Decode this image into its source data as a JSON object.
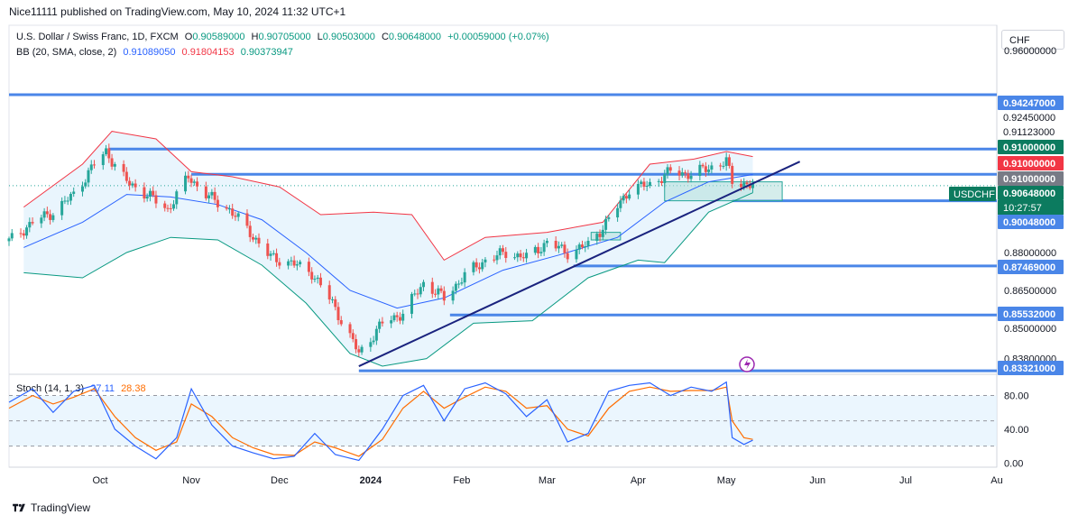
{
  "header": {
    "publisher": "Nice11111 published on TradingView.com, May 10, 2024 11:32 UTC+1"
  },
  "legend": {
    "symbol": "U.S. Dollar / Swiss Franc, 1D, FXCM",
    "open_label": "O",
    "open": "0.90589000",
    "high_label": "H",
    "high": "0.90705000",
    "low_label": "L",
    "low": "0.90503000",
    "close_label": "C",
    "close": "0.90648000",
    "change": "+0.00059000 (+0.07%)",
    "bb_label": "BB (20, SMA, close, 2)",
    "bb_basis": "0.91089050",
    "bb_upper": "0.91804153",
    "bb_lower": "0.90373947",
    "stoch_label": "Stoch (14, 1, 3)",
    "stoch_k": "27.11",
    "stoch_d": "28.38"
  },
  "toolbar": {
    "currency": "CHF"
  },
  "branding": {
    "name": "TradingView"
  },
  "colors": {
    "up": "#26a69a",
    "down": "#ef5350",
    "bb_upper": "#f23645",
    "bb_basis": "#2962ff",
    "bb_lower": "#089981",
    "bb_fill": "#e3f2fd",
    "level_line": "#4a86e8",
    "trend_line": "#1a237e",
    "stoch_k": "#2962ff",
    "stoch_d": "#ff6d00",
    "price_tag": "#0c7b5f",
    "red_tag": "#f23645"
  },
  "chart_data": {
    "type": "candlestick",
    "symbol_tag": "USDCHF",
    "countdown": "10:27:57",
    "price_axis": {
      "ylim": [
        0.8318,
        0.97
      ],
      "ticks": [
        "0.96000000",
        "0.88000000",
        "0.86500000",
        "0.85000000",
        "0.83800000"
      ],
      "tick_values": [
        0.96,
        0.88,
        0.865,
        0.85,
        0.838
      ]
    },
    "level_labels": [
      {
        "text": "0.94247000",
        "value": 0.94247,
        "style": "blue"
      },
      {
        "text": "0.92450000",
        "value": 0.9245,
        "style": "plain"
      },
      {
        "text": "0.91123000",
        "value": 0.91123,
        "style": "plain"
      },
      {
        "text": "0.91000000",
        "value": 0.91,
        "style": "green"
      },
      {
        "text": "0.91000000",
        "value": 0.91,
        "style": "red"
      },
      {
        "text": "0.91000000",
        "value": 0.91,
        "style": "gray"
      },
      {
        "text": "0.90648000",
        "value": 0.90648,
        "style": "price"
      },
      {
        "text": "0.90048000",
        "value": 0.90048,
        "style": "blue"
      },
      {
        "text": "0.87469000",
        "value": 0.87469,
        "style": "blue"
      },
      {
        "text": "0.85532000",
        "value": 0.85532,
        "style": "blue"
      },
      {
        "text": "0.83321000",
        "value": 0.83321,
        "style": "blue"
      }
    ],
    "x_axis": {
      "labels": [
        {
          "text": "Oct",
          "date": "2023-10-01"
        },
        {
          "text": "Nov",
          "date": "2023-11-01"
        },
        {
          "text": "Dec",
          "date": "2023-12-01"
        },
        {
          "text": "2024",
          "date": "2024-01-01"
        },
        {
          "text": "Feb",
          "date": "2024-02-01"
        },
        {
          "text": "Mar",
          "date": "2024-03-01"
        },
        {
          "text": "Apr",
          "date": "2024-04-01"
        },
        {
          "text": "May",
          "date": "2024-05-01"
        },
        {
          "text": "Jun",
          "date": "2024-06-01"
        },
        {
          "text": "Jul",
          "date": "2024-07-01"
        },
        {
          "text": "Au",
          "date": "2024-08-01"
        }
      ],
      "xlim": [
        "2023-08-31",
        "2024-08-01"
      ]
    },
    "series_points": [
      [
        "2023-08-31",
        0.8845
      ],
      [
        "2023-09-08",
        0.892
      ],
      [
        "2023-09-15",
        0.896
      ],
      [
        "2023-09-22",
        0.903
      ],
      [
        "2023-09-29",
        0.915
      ],
      [
        "2023-10-03",
        0.92
      ],
      [
        "2023-10-10",
        0.908
      ],
      [
        "2023-10-17",
        0.903
      ],
      [
        "2023-10-24",
        0.897
      ],
      [
        "2023-10-31",
        0.91
      ],
      [
        "2023-11-07",
        0.902
      ],
      [
        "2023-11-14",
        0.897
      ],
      [
        "2023-11-21",
        0.888
      ],
      [
        "2023-11-28",
        0.878
      ],
      [
        "2023-12-05",
        0.876
      ],
      [
        "2023-12-12",
        0.872
      ],
      [
        "2023-12-19",
        0.86
      ],
      [
        "2023-12-28",
        0.84
      ],
      [
        "2024-01-05",
        0.852
      ],
      [
        "2024-01-12",
        0.856
      ],
      [
        "2024-01-19",
        0.868
      ],
      [
        "2024-01-26",
        0.862
      ],
      [
        "2024-02-02",
        0.871
      ],
      [
        "2024-02-09",
        0.877
      ],
      [
        "2024-02-16",
        0.88
      ],
      [
        "2024-02-23",
        0.878
      ],
      [
        "2024-03-01",
        0.884
      ],
      [
        "2024-03-08",
        0.88
      ],
      [
        "2024-03-15",
        0.883
      ],
      [
        "2024-03-22",
        0.893
      ],
      [
        "2024-03-29",
        0.905
      ],
      [
        "2024-04-05",
        0.907
      ],
      [
        "2024-04-12",
        0.912
      ],
      [
        "2024-04-19",
        0.911
      ],
      [
        "2024-04-26",
        0.914
      ],
      [
        "2024-05-01",
        0.916
      ],
      [
        "2024-05-03",
        0.908
      ],
      [
        "2024-05-07",
        0.9075
      ],
      [
        "2024-05-10",
        0.90648
      ]
    ],
    "bollinger": {
      "upper": [
        [
          "2023-09-05",
          0.898
        ],
        [
          "2023-09-25",
          0.915
        ],
        [
          "2023-10-05",
          0.928
        ],
        [
          "2023-10-20",
          0.925
        ],
        [
          "2023-11-01",
          0.912
        ],
        [
          "2023-11-15",
          0.91
        ],
        [
          "2023-12-01",
          0.906
        ],
        [
          "2023-12-15",
          0.895
        ],
        [
          "2024-01-02",
          0.896
        ],
        [
          "2024-01-15",
          0.895
        ],
        [
          "2024-01-26",
          0.877
        ],
        [
          "2024-02-09",
          0.886
        ],
        [
          "2024-03-01",
          0.888
        ],
        [
          "2024-03-20",
          0.892
        ],
        [
          "2024-04-05",
          0.915
        ],
        [
          "2024-04-20",
          0.917
        ],
        [
          "2024-05-01",
          0.92
        ],
        [
          "2024-05-10",
          0.918
        ]
      ],
      "basis": [
        [
          "2023-09-05",
          0.882
        ],
        [
          "2023-09-25",
          0.892
        ],
        [
          "2023-10-10",
          0.903
        ],
        [
          "2023-10-25",
          0.902
        ],
        [
          "2023-11-10",
          0.899
        ],
        [
          "2023-11-25",
          0.893
        ],
        [
          "2023-12-10",
          0.88
        ],
        [
          "2023-12-25",
          0.865
        ],
        [
          "2024-01-10",
          0.858
        ],
        [
          "2024-01-26",
          0.862
        ],
        [
          "2024-02-15",
          0.873
        ],
        [
          "2024-03-05",
          0.879
        ],
        [
          "2024-03-25",
          0.886
        ],
        [
          "2024-04-10",
          0.9
        ],
        [
          "2024-04-25",
          0.908
        ],
        [
          "2024-05-10",
          0.9109
        ]
      ],
      "lower": [
        [
          "2023-09-05",
          0.872
        ],
        [
          "2023-09-25",
          0.87
        ],
        [
          "2023-10-10",
          0.88
        ],
        [
          "2023-10-25",
          0.886
        ],
        [
          "2023-11-10",
          0.885
        ],
        [
          "2023-11-25",
          0.875
        ],
        [
          "2023-12-10",
          0.86
        ],
        [
          "2023-12-25",
          0.84
        ],
        [
          "2024-01-05",
          0.835
        ],
        [
          "2024-01-20",
          0.838
        ],
        [
          "2024-02-05",
          0.852
        ],
        [
          "2024-02-25",
          0.853
        ],
        [
          "2024-03-15",
          0.87
        ],
        [
          "2024-04-01",
          0.877
        ],
        [
          "2024-04-10",
          0.876
        ],
        [
          "2024-04-25",
          0.896
        ],
        [
          "2024-05-10",
          0.9037
        ]
      ]
    },
    "horizontal_levels": [
      {
        "value": 0.9425,
        "from": "2023-08-31",
        "to": "2024-08-01"
      },
      {
        "value": 0.921,
        "from": "2023-10-04",
        "to": "2024-08-01"
      },
      {
        "value": 0.911,
        "from": "2023-11-01",
        "to": "2024-08-01"
      },
      {
        "value": 0.9005,
        "from": "2024-05-03",
        "to": "2024-08-01"
      },
      {
        "value": 0.8747,
        "from": "2024-03-10",
        "to": "2024-08-01"
      },
      {
        "value": 0.8553,
        "from": "2024-01-28",
        "to": "2024-08-01"
      },
      {
        "value": 0.8332,
        "from": "2023-12-28",
        "to": "2024-08-01"
      }
    ],
    "trend_line": {
      "from": [
        "2023-12-28",
        0.835
      ],
      "to": [
        "2024-05-26",
        0.916
      ]
    },
    "zones": [
      {
        "from": "2024-04-10",
        "to": "2024-05-20",
        "low": 0.9005,
        "high": 0.908
      },
      {
        "from": "2024-03-16",
        "to": "2024-03-26",
        "low": 0.885,
        "high": 0.888
      }
    ],
    "stochastic": {
      "ylim": [
        -5,
        102
      ],
      "ticks": [
        "80.00",
        "40.00",
        "0.00"
      ],
      "tick_values": [
        80,
        40,
        0
      ],
      "bands": [
        80,
        20
      ],
      "k": [
        [
          "2023-08-31",
          72
        ],
        [
          "2023-09-08",
          88
        ],
        [
          "2023-09-15",
          60
        ],
        [
          "2023-09-22",
          85
        ],
        [
          "2023-09-29",
          92
        ],
        [
          "2023-10-06",
          40
        ],
        [
          "2023-10-13",
          20
        ],
        [
          "2023-10-20",
          5
        ],
        [
          "2023-10-27",
          30
        ],
        [
          "2023-11-01",
          88
        ],
        [
          "2023-11-08",
          45
        ],
        [
          "2023-11-15",
          20
        ],
        [
          "2023-11-22",
          12
        ],
        [
          "2023-11-29",
          5
        ],
        [
          "2023-12-06",
          8
        ],
        [
          "2023-12-13",
          35
        ],
        [
          "2023-12-20",
          10
        ],
        [
          "2023-12-28",
          3
        ],
        [
          "2024-01-05",
          40
        ],
        [
          "2024-01-12",
          80
        ],
        [
          "2024-01-19",
          92
        ],
        [
          "2024-01-26",
          50
        ],
        [
          "2024-02-02",
          88
        ],
        [
          "2024-02-09",
          95
        ],
        [
          "2024-02-16",
          82
        ],
        [
          "2024-02-23",
          55
        ],
        [
          "2024-03-01",
          75
        ],
        [
          "2024-03-08",
          25
        ],
        [
          "2024-03-15",
          35
        ],
        [
          "2024-03-22",
          85
        ],
        [
          "2024-03-29",
          92
        ],
        [
          "2024-04-05",
          95
        ],
        [
          "2024-04-12",
          80
        ],
        [
          "2024-04-19",
          90
        ],
        [
          "2024-04-26",
          85
        ],
        [
          "2024-05-01",
          96
        ],
        [
          "2024-05-03",
          30
        ],
        [
          "2024-05-07",
          22
        ],
        [
          "2024-05-10",
          27
        ]
      ],
      "d": [
        [
          "2023-08-31",
          65
        ],
        [
          "2023-09-08",
          80
        ],
        [
          "2023-09-15",
          70
        ],
        [
          "2023-09-22",
          78
        ],
        [
          "2023-09-29",
          88
        ],
        [
          "2023-10-06",
          55
        ],
        [
          "2023-10-13",
          30
        ],
        [
          "2023-10-20",
          15
        ],
        [
          "2023-10-27",
          25
        ],
        [
          "2023-11-01",
          70
        ],
        [
          "2023-11-08",
          55
        ],
        [
          "2023-11-15",
          30
        ],
        [
          "2023-11-22",
          18
        ],
        [
          "2023-11-29",
          10
        ],
        [
          "2023-12-06",
          9
        ],
        [
          "2023-12-13",
          25
        ],
        [
          "2023-12-20",
          18
        ],
        [
          "2023-12-28",
          8
        ],
        [
          "2024-01-05",
          28
        ],
        [
          "2024-01-12",
          65
        ],
        [
          "2024-01-19",
          85
        ],
        [
          "2024-01-26",
          65
        ],
        [
          "2024-02-02",
          78
        ],
        [
          "2024-02-09",
          90
        ],
        [
          "2024-02-16",
          85
        ],
        [
          "2024-02-23",
          65
        ],
        [
          "2024-03-01",
          68
        ],
        [
          "2024-03-08",
          40
        ],
        [
          "2024-03-15",
          32
        ],
        [
          "2024-03-22",
          65
        ],
        [
          "2024-03-29",
          85
        ],
        [
          "2024-04-05",
          90
        ],
        [
          "2024-04-12",
          85
        ],
        [
          "2024-04-19",
          86
        ],
        [
          "2024-04-26",
          86
        ],
        [
          "2024-05-01",
          90
        ],
        [
          "2024-05-03",
          50
        ],
        [
          "2024-05-07",
          30
        ],
        [
          "2024-05-10",
          28
        ]
      ]
    }
  }
}
